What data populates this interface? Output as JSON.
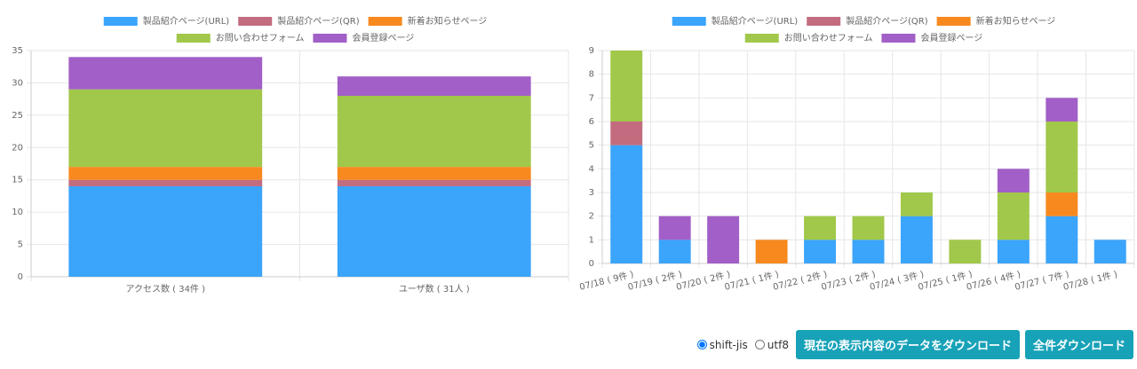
{
  "chart_data": [
    {
      "type": "stacked-bar",
      "categories": [
        "アクセス数 ( 34件 )",
        "ユーザ数 ( 31人 )"
      ],
      "series": [
        {
          "name": "製品紹介ページ(URL)",
          "color": "#3ba4fb",
          "values": [
            14,
            14
          ]
        },
        {
          "name": "製品紹介ページ(QR)",
          "color": "#c36c7f",
          "values": [
            1,
            1
          ]
        },
        {
          "name": "新着お知らせページ",
          "color": "#f7891f",
          "values": [
            2,
            2
          ]
        },
        {
          "name": "お問い合わせフォーム",
          "color": "#a1c84a",
          "values": [
            12,
            11
          ]
        },
        {
          "name": "会員登録ページ",
          "color": "#a25fc7",
          "values": [
            5,
            3
          ]
        }
      ],
      "ylim": [
        0,
        35
      ],
      "yticks": [
        0,
        5,
        10,
        15,
        20,
        25,
        30,
        35
      ],
      "grid": true
    },
    {
      "type": "stacked-bar",
      "categories": [
        "07/18 ( 9件 )",
        "07/19 ( 2件 )",
        "07/20 ( 2件 )",
        "07/21 ( 1件 )",
        "07/22 ( 2件 )",
        "07/23 ( 2件 )",
        "07/24 ( 3件 )",
        "07/25 ( 1件 )",
        "07/26 ( 4件 )",
        "07/27 ( 7件 )",
        "07/28 ( 1件 )"
      ],
      "series": [
        {
          "name": "製品紹介ページ(URL)",
          "color": "#3ba4fb",
          "values": [
            5,
            1,
            0,
            0,
            1,
            1,
            2,
            0,
            1,
            2,
            1
          ]
        },
        {
          "name": "製品紹介ページ(QR)",
          "color": "#c36c7f",
          "values": [
            1,
            0,
            0,
            0,
            0,
            0,
            0,
            0,
            0,
            0,
            0
          ]
        },
        {
          "name": "新着お知らせページ",
          "color": "#f7891f",
          "values": [
            0,
            0,
            0,
            1,
            0,
            0,
            0,
            0,
            0,
            1,
            0
          ]
        },
        {
          "name": "お問い合わせフォーム",
          "color": "#a1c84a",
          "values": [
            3,
            0,
            0,
            0,
            1,
            1,
            1,
            1,
            2,
            3,
            0
          ]
        },
        {
          "name": "会員登録ページ",
          "color": "#a25fc7",
          "values": [
            0,
            1,
            2,
            0,
            0,
            0,
            0,
            0,
            1,
            1,
            0
          ]
        }
      ],
      "ylim": [
        0,
        9
      ],
      "yticks": [
        0,
        1,
        2,
        3,
        4,
        5,
        6,
        7,
        8,
        9
      ],
      "grid": true
    }
  ],
  "controls": {
    "encodings": [
      "shift-jis",
      "utf8"
    ],
    "selected": 0,
    "buttons": [
      "現在の表示内容のデータをダウンロード",
      "全件ダウンロード"
    ]
  }
}
